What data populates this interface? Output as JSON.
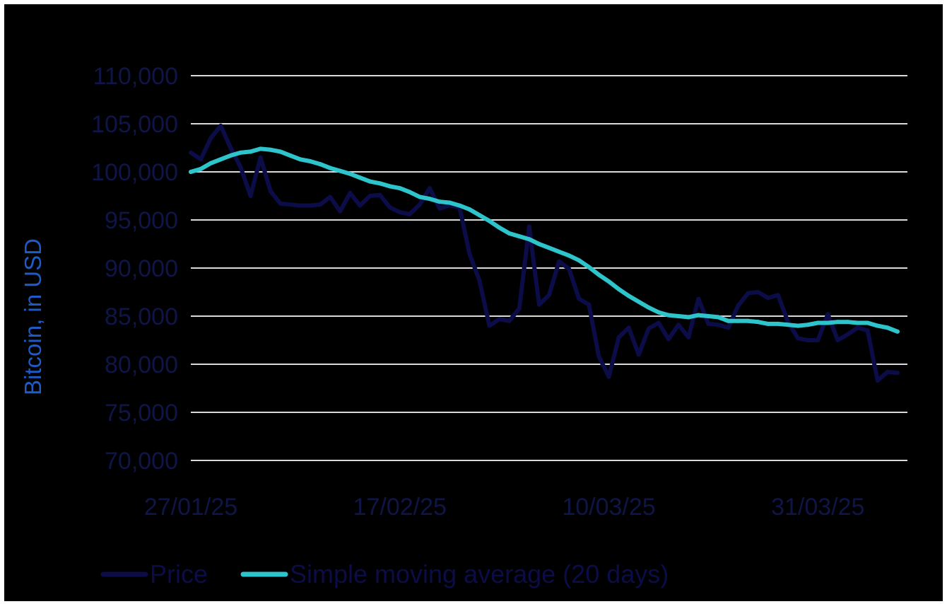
{
  "colors": {
    "background": "#000000",
    "grid": "#d9d9d9",
    "price": "#0c0c48",
    "sma": "#2ec4cc",
    "tick_text": "#101548",
    "axis_title": "#1e5bc6"
  },
  "chart_data": {
    "type": "line",
    "title": "",
    "xlabel": "",
    "ylabel": "Bitcoin, in USD",
    "ylim": [
      70000,
      110000
    ],
    "yticks": [
      {
        "value": 110000,
        "label": "110,000"
      },
      {
        "value": 105000,
        "label": "105,000"
      },
      {
        "value": 100000,
        "label": "100,000"
      },
      {
        "value": 95000,
        "label": "95,000"
      },
      {
        "value": 90000,
        "label": "90,000"
      },
      {
        "value": 85000,
        "label": "85,000"
      },
      {
        "value": 80000,
        "label": "80,000"
      },
      {
        "value": 75000,
        "label": "75,000"
      },
      {
        "value": 70000,
        "label": "70,000"
      }
    ],
    "xlim": [
      "2025-01-27",
      "2025-04-09"
    ],
    "xticks": [
      {
        "date": "2025-01-27",
        "label": "27/01/25"
      },
      {
        "date": "2025-02-17",
        "label": "17/02/25"
      },
      {
        "date": "2025-03-10",
        "label": "10/03/25"
      },
      {
        "date": "2025-03-31",
        "label": "31/03/25"
      }
    ],
    "grid": true,
    "legend": "bottom-left",
    "series": [
      {
        "name": "Price",
        "color_key": "price",
        "points": [
          [
            "2025-01-27",
            102000
          ],
          [
            "2025-01-28",
            101300
          ],
          [
            "2025-01-29",
            103500
          ],
          [
            "2025-01-30",
            104800
          ],
          [
            "2025-01-31",
            102500
          ],
          [
            "2025-02-01",
            100500
          ],
          [
            "2025-02-02",
            97500
          ],
          [
            "2025-02-03",
            101500
          ],
          [
            "2025-02-04",
            98000
          ],
          [
            "2025-02-05",
            96700
          ],
          [
            "2025-02-06",
            96600
          ],
          [
            "2025-02-07",
            96500
          ],
          [
            "2025-02-08",
            96500
          ],
          [
            "2025-02-09",
            96600
          ],
          [
            "2025-02-10",
            97400
          ],
          [
            "2025-02-11",
            95900
          ],
          [
            "2025-02-12",
            97800
          ],
          [
            "2025-02-13",
            96500
          ],
          [
            "2025-02-14",
            97500
          ],
          [
            "2025-02-15",
            97600
          ],
          [
            "2025-02-16",
            96300
          ],
          [
            "2025-02-17",
            95800
          ],
          [
            "2025-02-18",
            95600
          ],
          [
            "2025-02-19",
            96600
          ],
          [
            "2025-02-20",
            98300
          ],
          [
            "2025-02-21",
            96200
          ],
          [
            "2025-02-22",
            96500
          ],
          [
            "2025-02-23",
            96300
          ],
          [
            "2025-02-24",
            91500
          ],
          [
            "2025-02-25",
            88700
          ],
          [
            "2025-02-26",
            84000
          ],
          [
            "2025-02-27",
            84700
          ],
          [
            "2025-02-28",
            84500
          ],
          [
            "2025-03-01",
            85800
          ],
          [
            "2025-03-02",
            94300
          ],
          [
            "2025-03-03",
            86200
          ],
          [
            "2025-03-04",
            87200
          ],
          [
            "2025-03-05",
            90700
          ],
          [
            "2025-03-06",
            89900
          ],
          [
            "2025-03-07",
            86800
          ],
          [
            "2025-03-08",
            86200
          ],
          [
            "2025-03-09",
            80800
          ],
          [
            "2025-03-10",
            78700
          ],
          [
            "2025-03-11",
            82800
          ],
          [
            "2025-03-12",
            83800
          ],
          [
            "2025-03-13",
            81000
          ],
          [
            "2025-03-14",
            83700
          ],
          [
            "2025-03-15",
            84300
          ],
          [
            "2025-03-16",
            82600
          ],
          [
            "2025-03-17",
            84100
          ],
          [
            "2025-03-18",
            82800
          ],
          [
            "2025-03-19",
            86800
          ],
          [
            "2025-03-20",
            84200
          ],
          [
            "2025-03-21",
            84100
          ],
          [
            "2025-03-22",
            83800
          ],
          [
            "2025-03-23",
            86100
          ],
          [
            "2025-03-24",
            87400
          ],
          [
            "2025-03-25",
            87500
          ],
          [
            "2025-03-26",
            86900
          ],
          [
            "2025-03-27",
            87200
          ],
          [
            "2025-03-28",
            84400
          ],
          [
            "2025-03-29",
            82700
          ],
          [
            "2025-03-30",
            82500
          ],
          [
            "2025-03-31",
            82500
          ],
          [
            "2025-04-01",
            85200
          ],
          [
            "2025-04-02",
            82500
          ],
          [
            "2025-04-03",
            83100
          ],
          [
            "2025-04-04",
            83800
          ],
          [
            "2025-04-05",
            83500
          ],
          [
            "2025-04-06",
            78300
          ],
          [
            "2025-04-07",
            79200
          ],
          [
            "2025-04-08",
            79100
          ]
        ]
      },
      {
        "name": "Simple moving average (20 days)",
        "color_key": "sma",
        "points": [
          [
            "2025-01-27",
            100000
          ],
          [
            "2025-01-28",
            100300
          ],
          [
            "2025-01-29",
            100900
          ],
          [
            "2025-01-30",
            101300
          ],
          [
            "2025-01-31",
            101700
          ],
          [
            "2025-02-01",
            102000
          ],
          [
            "2025-02-02",
            102100
          ],
          [
            "2025-02-03",
            102400
          ],
          [
            "2025-02-04",
            102300
          ],
          [
            "2025-02-05",
            102100
          ],
          [
            "2025-02-06",
            101700
          ],
          [
            "2025-02-07",
            101300
          ],
          [
            "2025-02-08",
            101100
          ],
          [
            "2025-02-09",
            100800
          ],
          [
            "2025-02-10",
            100400
          ],
          [
            "2025-02-11",
            100100
          ],
          [
            "2025-02-12",
            99800
          ],
          [
            "2025-02-13",
            99400
          ],
          [
            "2025-02-14",
            99000
          ],
          [
            "2025-02-15",
            98800
          ],
          [
            "2025-02-16",
            98500
          ],
          [
            "2025-02-17",
            98300
          ],
          [
            "2025-02-18",
            97900
          ],
          [
            "2025-02-19",
            97400
          ],
          [
            "2025-02-20",
            97200
          ],
          [
            "2025-02-21",
            96900
          ],
          [
            "2025-02-22",
            96800
          ],
          [
            "2025-02-23",
            96500
          ],
          [
            "2025-02-24",
            96100
          ],
          [
            "2025-02-25",
            95500
          ],
          [
            "2025-02-26",
            94900
          ],
          [
            "2025-02-27",
            94200
          ],
          [
            "2025-02-28",
            93600
          ],
          [
            "2025-03-01",
            93300
          ],
          [
            "2025-03-02",
            93000
          ],
          [
            "2025-03-03",
            92500
          ],
          [
            "2025-03-04",
            92100
          ],
          [
            "2025-03-05",
            91700
          ],
          [
            "2025-03-06",
            91300
          ],
          [
            "2025-03-07",
            90800
          ],
          [
            "2025-03-08",
            90100
          ],
          [
            "2025-03-09",
            89300
          ],
          [
            "2025-03-10",
            88600
          ],
          [
            "2025-03-11",
            87800
          ],
          [
            "2025-03-12",
            87100
          ],
          [
            "2025-03-13",
            86500
          ],
          [
            "2025-03-14",
            85900
          ],
          [
            "2025-03-15",
            85400
          ],
          [
            "2025-03-16",
            85100
          ],
          [
            "2025-03-17",
            85000
          ],
          [
            "2025-03-18",
            84900
          ],
          [
            "2025-03-19",
            85100
          ],
          [
            "2025-03-20",
            85000
          ],
          [
            "2025-03-21",
            84900
          ],
          [
            "2025-03-22",
            84500
          ],
          [
            "2025-03-23",
            84500
          ],
          [
            "2025-03-24",
            84500
          ],
          [
            "2025-03-25",
            84400
          ],
          [
            "2025-03-26",
            84200
          ],
          [
            "2025-03-27",
            84200
          ],
          [
            "2025-03-28",
            84100
          ],
          [
            "2025-03-29",
            84000
          ],
          [
            "2025-03-30",
            84100
          ],
          [
            "2025-03-31",
            84300
          ],
          [
            "2025-04-01",
            84300
          ],
          [
            "2025-04-02",
            84400
          ],
          [
            "2025-04-03",
            84400
          ],
          [
            "2025-04-04",
            84300
          ],
          [
            "2025-04-05",
            84300
          ],
          [
            "2025-04-06",
            84000
          ],
          [
            "2025-04-07",
            83800
          ],
          [
            "2025-04-08",
            83400
          ]
        ]
      }
    ]
  }
}
